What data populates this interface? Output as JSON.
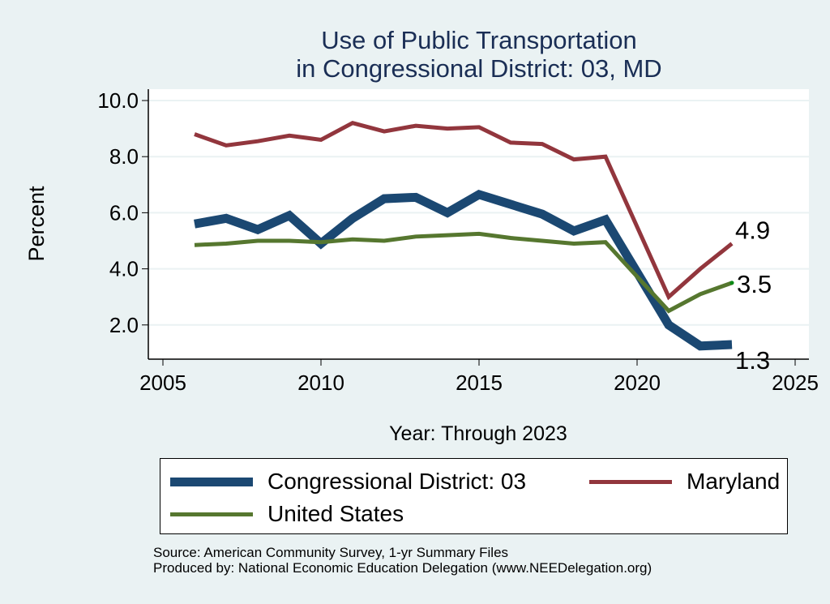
{
  "chart_data": {
    "type": "line",
    "title": [
      "Use of Public Transportation",
      "in Congressional District: 03, MD"
    ],
    "xlabel": "Year: Through 2023",
    "ylabel": "Percent",
    "xlim": [
      2004,
      2026
    ],
    "ylim": [
      0.8,
      10.4
    ],
    "xticks": [
      2005,
      2010,
      2015,
      2020,
      2025
    ],
    "xtick_labels": [
      "2005",
      "2010",
      "2015",
      "2020",
      "2025"
    ],
    "yticks": [
      2,
      4,
      6,
      8,
      10
    ],
    "ytick_labels": [
      "2.0",
      "4.0",
      "6.0",
      "8.0",
      "10.0"
    ],
    "grid": true,
    "legend_position": "bottom",
    "series": [
      {
        "name": "Congressional District: 03",
        "color": "#1b4872",
        "width": "thick",
        "x": [
          2006,
          2007,
          2008,
          2009,
          2010,
          2011,
          2012,
          2013,
          2014,
          2015,
          2016,
          2017,
          2018,
          2019,
          2021,
          2022,
          2023
        ],
        "values": [
          5.6,
          5.8,
          5.4,
          5.9,
          4.9,
          5.8,
          6.5,
          6.55,
          6.0,
          6.65,
          6.3,
          5.95,
          5.35,
          5.75,
          2.0,
          1.25,
          1.3
        ],
        "end_label": "1.3"
      },
      {
        "name": "Maryland",
        "color": "#92363d",
        "width": "medium",
        "x": [
          2006,
          2007,
          2008,
          2009,
          2010,
          2011,
          2012,
          2013,
          2014,
          2015,
          2016,
          2017,
          2018,
          2019,
          2021,
          2022,
          2023
        ],
        "values": [
          8.8,
          8.4,
          8.55,
          8.75,
          8.6,
          9.2,
          8.9,
          9.1,
          9.0,
          9.05,
          8.5,
          8.45,
          7.9,
          8.0,
          3.0,
          4.0,
          4.9
        ],
        "end_label": "4.9"
      },
      {
        "name": "United States",
        "color": "#56772f",
        "width": "medium",
        "x": [
          2006,
          2007,
          2008,
          2009,
          2010,
          2011,
          2012,
          2013,
          2014,
          2015,
          2016,
          2017,
          2018,
          2019,
          2021,
          2022,
          2023
        ],
        "values": [
          4.85,
          4.9,
          5.0,
          5.0,
          4.95,
          5.05,
          5.0,
          5.15,
          5.2,
          5.25,
          5.1,
          5.0,
          4.9,
          4.95,
          2.5,
          3.1,
          3.5
        ],
        "end_label": "3.5",
        "end_marker_color": "#0a8a16"
      }
    ],
    "legend": [
      {
        "label": "Congressional District: 03"
      },
      {
        "label": "Maryland"
      },
      {
        "label": "United States"
      }
    ],
    "notes": [
      "Source: American Community Survey, 1-yr Summary Files",
      "Produced by: National Economic Education Delegation (www.NEEDelegation.org)"
    ]
  }
}
